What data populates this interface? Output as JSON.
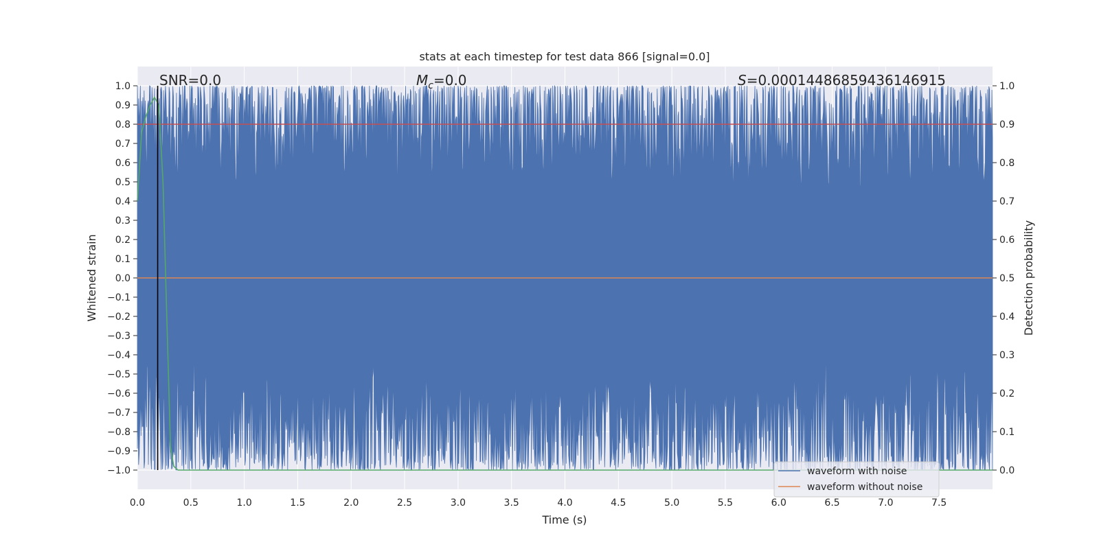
{
  "chart_data": {
    "type": "line",
    "title": "stats at each timestep for test data 866 [signal=0.0]",
    "xlabel": "Time (s)",
    "ylabel_left": "Whitened strain",
    "ylabel_right": "Detection probability",
    "xlim": [
      0.0,
      8.0
    ],
    "ylim_left": [
      -1.1,
      1.1
    ],
    "ylim_right": [
      -0.05,
      1.05
    ],
    "x_ticks": [
      "0.0",
      "0.5",
      "1.0",
      "1.5",
      "2.0",
      "2.5",
      "3.0",
      "3.5",
      "4.0",
      "4.5",
      "5.0",
      "5.5",
      "6.0",
      "6.5",
      "7.0",
      "7.5"
    ],
    "y_ticks_left": [
      "1.0",
      "0.9",
      "0.8",
      "0.7",
      "0.6",
      "0.5",
      "0.4",
      "0.3",
      "0.2",
      "0.1",
      "0.0",
      "−0.1",
      "−0.2",
      "−0.3",
      "−0.4",
      "−0.5",
      "−0.6",
      "−0.7",
      "−0.8",
      "−0.9",
      "−1.0"
    ],
    "y_ticks_right": [
      "1.0",
      "0.9",
      "0.8",
      "0.7",
      "0.6",
      "0.5",
      "0.4",
      "0.3",
      "0.2",
      "0.1",
      "0.0"
    ],
    "annotations": {
      "snr": "SNR=0.0",
      "mc_symbol": "M",
      "mc_sub": "c",
      "mc_value": "=0.0",
      "s_symbol": "S",
      "s_value": "=0.00014486859436146915"
    },
    "vertical_line_x": 0.19,
    "series": [
      {
        "name": "waveform with noise",
        "color": "#4c72b0",
        "axis": "left",
        "description_range": [
          -1.0,
          1.0
        ]
      },
      {
        "name": "waveform without noise",
        "color": "#dd8452",
        "axis": "left",
        "x": [
          0.0,
          8.0
        ],
        "y": [
          0.0,
          0.0
        ]
      },
      {
        "color": "#55a868",
        "axis": "right",
        "x": [
          0.0,
          0.04,
          0.08,
          0.12,
          0.16,
          0.2,
          0.24,
          0.28,
          0.31,
          0.34,
          0.38,
          8.0
        ],
        "y": [
          0.7,
          0.88,
          0.92,
          0.95,
          0.97,
          0.95,
          0.75,
          0.35,
          0.06,
          0.01,
          0.0,
          0.0
        ]
      },
      {
        "color": "#c44e52",
        "axis": "right",
        "x": [
          0.0,
          8.0
        ],
        "y": [
          0.9,
          0.9
        ]
      }
    ],
    "legend_position": "lower right",
    "grid": true,
    "colors": {
      "background": "#eaeaf2",
      "grid": "#ffffff",
      "threshold_line": "#000000"
    }
  }
}
